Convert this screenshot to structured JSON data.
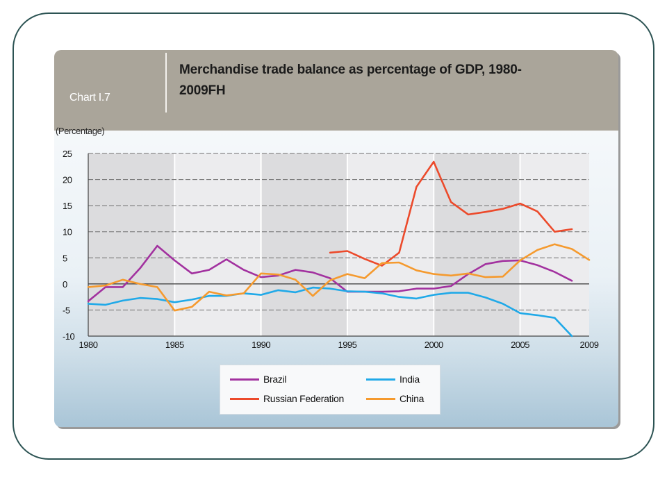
{
  "panel": {
    "chart_number": "Chart I.7",
    "title": "Merchandise trade balance as percentage of GDP, 1980-2009FH",
    "unit_label": "(Percentage)"
  },
  "colors": {
    "frame": "#2c5353",
    "header": "#aaa59a",
    "brazil": "#a2319f",
    "india": "#20a9e8",
    "russia": "#ec4a2b",
    "china": "#f59a2e"
  },
  "chart_data": {
    "type": "line",
    "title": "Merchandise trade balance as percentage of GDP, 1980-2009FH",
    "ylabel": "(Percentage)",
    "xlabel": "",
    "xlim": [
      1980,
      2009
    ],
    "ylim": [
      -10,
      25
    ],
    "x_ticks": [
      "1980",
      "1985",
      "1990",
      "1995",
      "2000",
      "2005",
      "2009"
    ],
    "y_ticks": [
      "25",
      "20",
      "15",
      "10",
      "5",
      "0",
      "-5",
      "-10"
    ],
    "legend": "bottom-center",
    "series": [
      {
        "name": "Brazil",
        "color": "#a2319f",
        "x": [
          1980,
          1981,
          1982,
          1983,
          1984,
          1985,
          1986,
          1987,
          1988,
          1989,
          1990,
          1991,
          1992,
          1993,
          1994,
          1995,
          1996,
          1997,
          1998,
          1999,
          2000,
          2001,
          2002,
          2003,
          2004,
          2005,
          2006,
          2007,
          2008
        ],
        "y": [
          -3.3,
          -0.6,
          -0.6,
          3.0,
          7.3,
          4.5,
          2.0,
          2.7,
          4.7,
          2.7,
          1.3,
          1.6,
          2.7,
          2.2,
          1.1,
          -1.5,
          -1.5,
          -1.5,
          -1.4,
          -0.9,
          -0.9,
          -0.4,
          1.9,
          3.8,
          4.4,
          4.5,
          3.6,
          2.3,
          0.6
        ]
      },
      {
        "name": "India",
        "color": "#20a9e8",
        "x": [
          1980,
          1981,
          1982,
          1983,
          1984,
          1985,
          1986,
          1987,
          1988,
          1989,
          1990,
          1991,
          1992,
          1993,
          1994,
          1995,
          1996,
          1997,
          1998,
          1999,
          2000,
          2001,
          2002,
          2003,
          2004,
          2005,
          2006,
          2007,
          2008
        ],
        "y": [
          -3.8,
          -4.0,
          -3.2,
          -2.7,
          -2.9,
          -3.5,
          -3.0,
          -2.3,
          -2.3,
          -1.8,
          -2.1,
          -1.2,
          -1.6,
          -0.7,
          -0.9,
          -1.4,
          -1.5,
          -1.8,
          -2.5,
          -2.8,
          -2.1,
          -1.7,
          -1.7,
          -2.6,
          -3.8,
          -5.6,
          -6.0,
          -6.5,
          -10.0
        ]
      },
      {
        "name": "Russian Federation",
        "color": "#ec4a2b",
        "x": [
          1994,
          1995,
          1996,
          1997,
          1998,
          1999,
          2000,
          2001,
          2002,
          2003,
          2004,
          2005,
          2006,
          2007,
          2008
        ],
        "y": [
          6.0,
          6.3,
          4.8,
          3.5,
          6.0,
          18.6,
          23.4,
          15.7,
          13.3,
          13.8,
          14.4,
          15.4,
          13.9,
          10.0,
          10.5
        ]
      },
      {
        "name": "China",
        "color": "#f59a2e",
        "x": [
          1980,
          1981,
          1982,
          1983,
          1984,
          1985,
          1986,
          1987,
          1988,
          1989,
          1990,
          1991,
          1992,
          1993,
          1994,
          1995,
          1996,
          1997,
          1998,
          1999,
          2000,
          2001,
          2002,
          2003,
          2004,
          2005,
          2006,
          2007,
          2008,
          2009
        ],
        "y": [
          -0.6,
          -0.3,
          0.8,
          0.0,
          -0.6,
          -5.1,
          -4.4,
          -1.5,
          -2.2,
          -1.8,
          2.0,
          1.8,
          0.8,
          -2.3,
          0.7,
          1.9,
          1.1,
          4.0,
          4.1,
          2.6,
          1.9,
          1.6,
          2.0,
          1.3,
          1.4,
          4.5,
          6.5,
          7.6,
          6.7,
          4.6
        ]
      }
    ]
  }
}
